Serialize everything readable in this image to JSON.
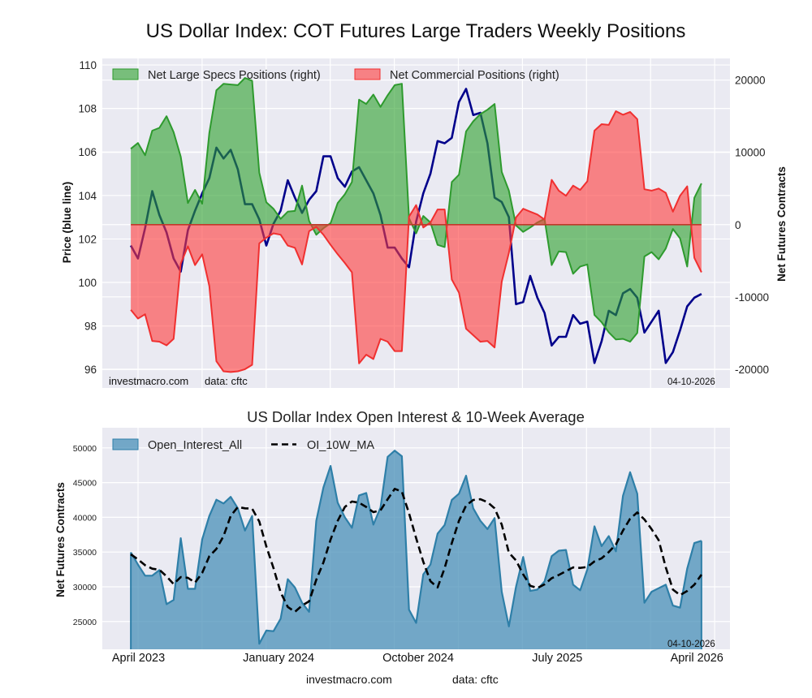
{
  "title": "US Dollar Index: COT Futures Large Traders Weekly Positions",
  "footer": {
    "site": "investmacro.com",
    "source": "data: cftc"
  },
  "colors": {
    "background": "#eaeaf2",
    "grid": "#ffffff",
    "price_line": "#00008b",
    "specs_fill": "#2ca02c",
    "specs_line": "#2e9a2e",
    "commercial_fill": "#ff3b3b",
    "commercial_line": "#f03030",
    "oi_fill": "#4a90b8",
    "oi_line": "#2e7fa8",
    "ma_line": "#000000"
  },
  "chart_data": [
    {
      "type": "line+area",
      "title": "",
      "left_ylabel": "Price (blue line)",
      "right_ylabel": "Net Futures Contracts",
      "left_ylim": [
        95.15,
        110.3
      ],
      "right_ylim": [
        -22600,
        23000
      ],
      "left_ticks": [
        "96",
        "98",
        "100",
        "102",
        "104",
        "106",
        "108",
        "110"
      ],
      "right_ticks": [
        "-20000",
        "-10000",
        "0",
        "10000",
        "20000"
      ],
      "grid": true,
      "legend_position": "top-left",
      "legend": [
        "Net Large Specs Positions (right)",
        "Net Commercial Positions (right)"
      ],
      "annotations": {
        "site": "investmacro.com",
        "source": "data: cftc",
        "date": "04-10-2026"
      },
      "dates": [
        "2023-03-17",
        "2023-03-31",
        "2023-04-14",
        "2023-04-28",
        "2023-05-12",
        "2023-05-26",
        "2023-06-09",
        "2023-06-23",
        "2023-07-07",
        "2023-07-21",
        "2023-08-04",
        "2023-08-18",
        "2023-09-01",
        "2023-09-15",
        "2023-09-29",
        "2023-10-13",
        "2023-10-27",
        "2023-11-10",
        "2023-11-24",
        "2023-12-08",
        "2023-12-22",
        "2024-01-05",
        "2024-01-19",
        "2024-02-02",
        "2024-02-16",
        "2024-03-01",
        "2024-03-15",
        "2024-03-29",
        "2024-04-12",
        "2024-04-26",
        "2024-05-10",
        "2024-05-24",
        "2024-06-07",
        "2024-06-21",
        "2024-07-05",
        "2024-07-19",
        "2024-08-02",
        "2024-08-16",
        "2024-08-30",
        "2024-09-13",
        "2024-09-27",
        "2024-10-11",
        "2024-10-25",
        "2024-11-08",
        "2024-11-22",
        "2024-12-06",
        "2024-12-20",
        "2025-01-03",
        "2025-01-17",
        "2025-01-31",
        "2025-02-14",
        "2025-02-28",
        "2025-03-14",
        "2025-03-28",
        "2025-04-11",
        "2025-04-25",
        "2025-05-09",
        "2025-05-23",
        "2025-06-06",
        "2025-06-20",
        "2025-07-04",
        "2025-07-18",
        "2025-08-01",
        "2025-08-15",
        "2025-08-29",
        "2025-09-12",
        "2025-09-26",
        "2025-10-10",
        "2025-10-24",
        "2025-11-07",
        "2025-11-21",
        "2025-12-05",
        "2025-12-19",
        "2026-01-02",
        "2026-01-16",
        "2026-01-30",
        "2026-02-13",
        "2026-02-27",
        "2026-03-13",
        "2026-03-27",
        "2026-04-10"
      ],
      "price": [
        101.7,
        101.1,
        102.5,
        104.2,
        103.1,
        102.3,
        101.1,
        100.5,
        102.4,
        103.3,
        104.1,
        104.8,
        106.2,
        105.7,
        106.1,
        105.2,
        103.6,
        103.6,
        102.9,
        101.7,
        102.7,
        103.3,
        104.7,
        103.9,
        103.2,
        103.8,
        104.2,
        105.8,
        105.8,
        104.8,
        104.4,
        105.1,
        105.3,
        104.7,
        104.1,
        103.1,
        101.6,
        101.6,
        101.1,
        100.7,
        102.8,
        104.1,
        105.0,
        106.5,
        106.4,
        106.65,
        108.3,
        108.9,
        107.7,
        107.8,
        106.4,
        103.9,
        103.7,
        103.0,
        99.0,
        99.1,
        100.3,
        99.3,
        98.6,
        97.1,
        97.5,
        97.5,
        98.5,
        98.1,
        98.2,
        96.3,
        97.3,
        98.7,
        98.5,
        99.5,
        99.7,
        99.3,
        97.7,
        98.2,
        98.7,
        96.3,
        96.8,
        97.8,
        98.9,
        99.3,
        99.47
      ],
      "series": [
        {
          "name": "Net Large Specs Positions (right)",
          "axis": "right",
          "values": [
            10500,
            11300,
            9600,
            13000,
            13400,
            15000,
            12800,
            9400,
            3000,
            4800,
            2900,
            12700,
            18600,
            19500,
            19400,
            19300,
            20300,
            19900,
            7200,
            3100,
            2200,
            800,
            1800,
            1900,
            5400,
            500,
            -1400,
            -500,
            200,
            3000,
            4200,
            5900,
            17300,
            16700,
            18000,
            16300,
            17900,
            19300,
            19500,
            900,
            -1200,
            1200,
            300,
            -2800,
            -3100,
            5900,
            6900,
            12900,
            14300,
            15300,
            15900,
            16700,
            7300,
            4700,
            -100,
            -1000,
            -400,
            300,
            800,
            -5600,
            -3700,
            -3800,
            -6800,
            -5800,
            -5500,
            -12500,
            -13500,
            -14900,
            -15900,
            -15800,
            -16200,
            -15000,
            -4400,
            -3800,
            -4800,
            -3300,
            -600,
            -1900,
            -5800,
            3700,
            5700
          ]
        },
        {
          "name": "Net Commercial Positions (right)",
          "axis": "right",
          "values": [
            -11800,
            -13000,
            -12400,
            -16100,
            -16200,
            -16700,
            -15800,
            -5400,
            -3000,
            -5600,
            -4100,
            -8500,
            -18900,
            -20300,
            -20400,
            -20300,
            -20000,
            -19400,
            -2600,
            -1800,
            -1200,
            -1400,
            -2900,
            -3200,
            -5500,
            -900,
            -300,
            -1400,
            -2800,
            -4100,
            -5300,
            -6600,
            -19200,
            -18000,
            -18600,
            -15800,
            -16200,
            -17500,
            -17500,
            1100,
            2700,
            -400,
            300,
            2100,
            2100,
            -7600,
            -9400,
            -14400,
            -15300,
            -16200,
            -16100,
            -17000,
            -7900,
            -3900,
            1000,
            2200,
            1800,
            1400,
            700,
            6200,
            4700,
            4000,
            5400,
            4800,
            6000,
            13000,
            13900,
            13800,
            15700,
            15200,
            15600,
            14600,
            4900,
            4700,
            5000,
            4400,
            1800,
            4000,
            5300,
            -4600,
            -6600
          ]
        }
      ]
    },
    {
      "type": "area+line",
      "title": "US Dollar Index Open Interest & 10-Week Average",
      "ylabel": "Net Futures Contracts",
      "ylim": [
        21000,
        52900
      ],
      "y_ticks": [
        "25000",
        "30000",
        "35000",
        "40000",
        "45000",
        "50000"
      ],
      "x_ticks": [
        {
          "label": "April 2023",
          "date": "2023-04-01"
        },
        {
          "label": "January 2024",
          "date": "2024-01-01"
        },
        {
          "label": "October 2024",
          "date": "2024-10-01"
        },
        {
          "label": "July 2025",
          "date": "2025-07-01"
        },
        {
          "label": "April 2026",
          "date": "2026-04-01"
        }
      ],
      "grid": true,
      "legend_position": "top-left",
      "legend": [
        "Open_Interest_All",
        "OI_10W_MA"
      ],
      "annotations": {
        "date": "04-10-2026"
      },
      "dates": [
        "2023-03-17",
        "2023-03-31",
        "2023-04-14",
        "2023-04-28",
        "2023-05-12",
        "2023-05-26",
        "2023-06-09",
        "2023-06-23",
        "2023-07-07",
        "2023-07-21",
        "2023-08-04",
        "2023-08-18",
        "2023-09-01",
        "2023-09-15",
        "2023-09-29",
        "2023-10-13",
        "2023-10-27",
        "2023-11-10",
        "2023-11-24",
        "2023-12-08",
        "2023-12-22",
        "2024-01-05",
        "2024-01-19",
        "2024-02-02",
        "2024-02-16",
        "2024-03-01",
        "2024-03-15",
        "2024-03-29",
        "2024-04-12",
        "2024-04-26",
        "2024-05-10",
        "2024-05-24",
        "2024-06-07",
        "2024-06-21",
        "2024-07-05",
        "2024-07-19",
        "2024-08-02",
        "2024-08-16",
        "2024-08-30",
        "2024-09-13",
        "2024-09-27",
        "2024-10-11",
        "2024-10-25",
        "2024-11-08",
        "2024-11-22",
        "2024-12-06",
        "2024-12-20",
        "2025-01-03",
        "2025-01-17",
        "2025-01-31",
        "2025-02-14",
        "2025-02-28",
        "2025-03-14",
        "2025-03-28",
        "2025-04-11",
        "2025-04-25",
        "2025-05-09",
        "2025-05-23",
        "2025-06-06",
        "2025-06-20",
        "2025-07-04",
        "2025-07-18",
        "2025-08-01",
        "2025-08-15",
        "2025-08-29",
        "2025-09-12",
        "2025-09-26",
        "2025-10-10",
        "2025-10-24",
        "2025-11-07",
        "2025-11-21",
        "2025-12-05",
        "2025-12-19",
        "2026-01-02",
        "2026-01-16",
        "2026-01-30",
        "2026-02-13",
        "2026-02-27",
        "2026-03-13",
        "2026-03-27",
        "2026-04-10"
      ],
      "series": [
        {
          "name": "Open_Interest_All",
          "style": "area",
          "values": [
            34960,
            33200,
            31600,
            31600,
            32400,
            27500,
            28100,
            37000,
            29700,
            29700,
            36820,
            40200,
            42530,
            42000,
            42950,
            41300,
            38100,
            40200,
            21800,
            23700,
            23600,
            25400,
            31100,
            29900,
            27700,
            26400,
            39500,
            44300,
            47400,
            42100,
            40000,
            38490,
            43150,
            43500,
            38950,
            41400,
            48700,
            49600,
            48800,
            26700,
            24800,
            31800,
            33200,
            37650,
            38900,
            42500,
            43400,
            45980,
            41300,
            39500,
            38300,
            39900,
            29290,
            24300,
            30000,
            34300,
            29400,
            29600,
            30770,
            34400,
            35200,
            35300,
            30300,
            29500,
            32500,
            38700,
            35850,
            37300,
            35100,
            43100,
            46500,
            43400,
            27700,
            29290,
            29800,
            30300,
            27300,
            27000,
            32600,
            36300,
            36620
          ]
        },
        {
          "name": "OI_10W_MA",
          "style": "dashed",
          "values": [
            34670,
            33950,
            33100,
            32600,
            32450,
            31500,
            30400,
            31400,
            31300,
            30600,
            32000,
            34400,
            35450,
            37300,
            40200,
            41500,
            41300,
            41260,
            39400,
            35800,
            32700,
            29200,
            27100,
            26400,
            27300,
            27900,
            31000,
            33500,
            36800,
            39500,
            41500,
            42280,
            42100,
            41500,
            40750,
            41000,
            42600,
            44100,
            43700,
            40600,
            37000,
            33600,
            30800,
            29900,
            32700,
            36300,
            39500,
            41700,
            42500,
            42600,
            42200,
            41300,
            38960,
            34900,
            33800,
            31800,
            30150,
            29820,
            30350,
            31240,
            31700,
            32250,
            32790,
            32720,
            32850,
            33650,
            34100,
            35000,
            36100,
            38100,
            39800,
            40700,
            39700,
            38300,
            36700,
            32800,
            29600,
            28800,
            29400,
            30300,
            31750
          ]
        }
      ]
    }
  ]
}
